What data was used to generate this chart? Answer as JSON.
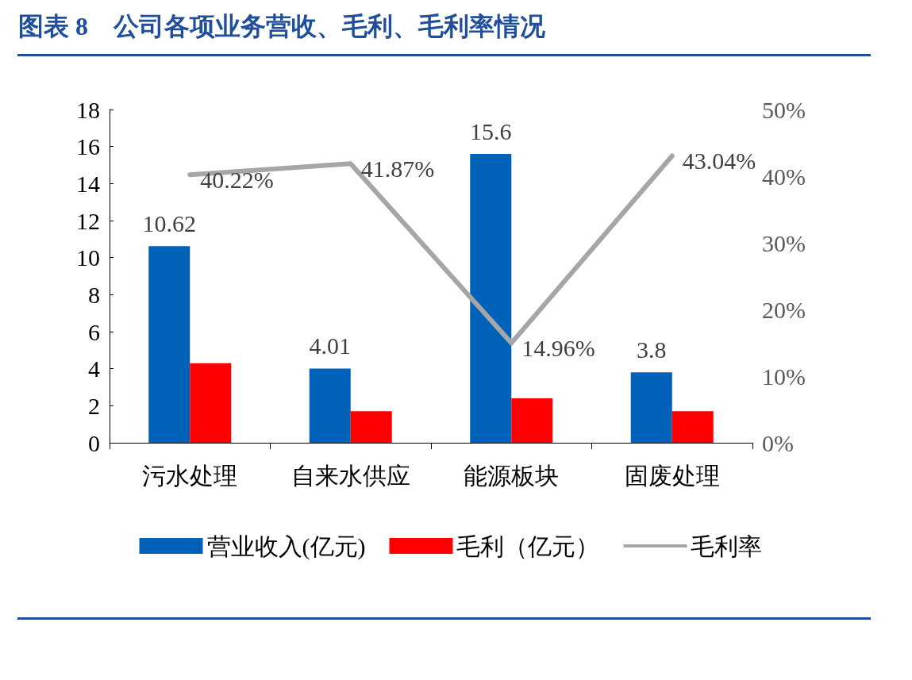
{
  "chart_data": {
    "type": "bar",
    "title": "图表 8　公司各项业务营收、毛利、毛利率情况",
    "categories": [
      "污水处理",
      "自来水供应",
      "能源板块",
      "固废处理"
    ],
    "series": [
      {
        "name": "营业收入(亿元)",
        "color": "#0061b8",
        "values": [
          10.62,
          4.01,
          15.6,
          3.8
        ],
        "value_labels": [
          "10.62",
          "4.01",
          "15.6",
          "3.8"
        ]
      },
      {
        "name": "毛利（亿元）",
        "color": "#ff0000",
        "values": [
          4.3,
          1.7,
          2.4,
          1.7
        ]
      },
      {
        "name": "毛利率",
        "type": "line",
        "axis": "y2",
        "color": "#a6a6a6",
        "values": [
          40.22,
          41.87,
          14.96,
          43.04
        ],
        "value_labels": [
          "40.22%",
          "41.87%",
          "14.96%",
          "43.04%"
        ]
      }
    ],
    "ylim": [
      0,
      18
    ],
    "yticks": [
      0,
      2,
      4,
      6,
      8,
      10,
      12,
      14,
      16,
      18
    ],
    "y2lim": [
      0,
      50
    ],
    "y2ticks": [
      {
        "value": 0,
        "label": "0%"
      },
      {
        "value": 10,
        "label": "10%"
      },
      {
        "value": 20,
        "label": "20%"
      },
      {
        "value": 30,
        "label": "30%"
      },
      {
        "value": 40,
        "label": "40%"
      },
      {
        "value": 50,
        "label": "50%"
      }
    ],
    "grid": false,
    "legend": "bottom",
    "marker": "none"
  }
}
